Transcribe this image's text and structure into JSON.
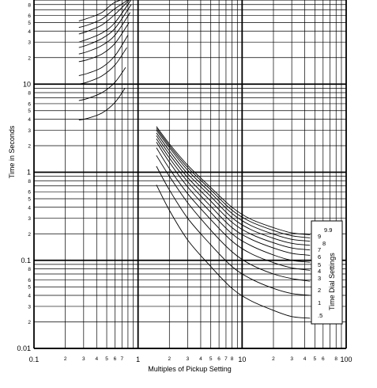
{
  "chart_data": {
    "type": "line",
    "title": "",
    "xlabel": "Multiples of Pickup Setting",
    "ylabel": "Time in Seconds",
    "x_scale": "log",
    "y_scale": "log",
    "xlim": [
      0.1,
      100
    ],
    "ylim": [
      0.01,
      100
    ],
    "grid": true,
    "x_major_ticks": [
      {
        "value": 0.1,
        "label": "0.1"
      },
      {
        "value": 1,
        "label": "1"
      },
      {
        "value": 10,
        "label": "10"
      },
      {
        "value": 100,
        "label": "100"
      }
    ],
    "x_minor_ticks": [
      {
        "value": 0.2,
        "label": "2"
      },
      {
        "value": 0.3,
        "label": "3"
      },
      {
        "value": 0.4,
        "label": "4"
      },
      {
        "value": 0.5,
        "label": "5"
      },
      {
        "value": 0.6,
        "label": "6"
      },
      {
        "value": 0.7,
        "label": "7"
      },
      {
        "value": 2,
        "label": "2"
      },
      {
        "value": 3,
        "label": "3"
      },
      {
        "value": 4,
        "label": "4"
      },
      {
        "value": 5,
        "label": "5"
      },
      {
        "value": 6,
        "label": "6"
      },
      {
        "value": 7,
        "label": "7"
      },
      {
        "value": 8,
        "label": "8"
      },
      {
        "value": 20,
        "label": "2"
      },
      {
        "value": 30,
        "label": "3"
      },
      {
        "value": 40,
        "label": "4"
      },
      {
        "value": 50,
        "label": "5"
      },
      {
        "value": 60,
        "label": "6"
      },
      {
        "value": 80,
        "label": "8"
      }
    ],
    "y_major_ticks": [
      {
        "value": 0.01,
        "label": "0.01"
      },
      {
        "value": 0.1,
        "label": "0.1"
      },
      {
        "value": 1,
        "label": "1"
      },
      {
        "value": 10,
        "label": "10"
      }
    ],
    "y_minor_ticks": [
      {
        "value": 0.02,
        "label": "2"
      },
      {
        "value": 0.03,
        "label": "3"
      },
      {
        "value": 0.04,
        "label": "4"
      },
      {
        "value": 0.05,
        "label": "5"
      },
      {
        "value": 0.06,
        "label": "6"
      },
      {
        "value": 0.08,
        "label": "8"
      },
      {
        "value": 0.2,
        "label": "2"
      },
      {
        "value": 0.3,
        "label": "3"
      },
      {
        "value": 0.4,
        "label": "4"
      },
      {
        "value": 0.5,
        "label": "5"
      },
      {
        "value": 0.6,
        "label": "6"
      },
      {
        "value": 0.8,
        "label": "8"
      },
      {
        "value": 2,
        "label": "2"
      },
      {
        "value": 3,
        "label": "3"
      },
      {
        "value": 4,
        "label": "4"
      },
      {
        "value": 5,
        "label": "5"
      },
      {
        "value": 6,
        "label": "6"
      },
      {
        "value": 8,
        "label": "8"
      },
      {
        "value": 20,
        "label": "2"
      },
      {
        "value": 30,
        "label": "3"
      },
      {
        "value": 40,
        "label": "4"
      },
      {
        "value": 50,
        "label": "5"
      },
      {
        "value": 60,
        "label": "6"
      },
      {
        "value": 80,
        "label": "8"
      }
    ],
    "legend_title": "Time Dial Settings",
    "legend_placement": "right",
    "dial_labels": [
      "9.9",
      "9",
      "8",
      "7",
      "6",
      "5",
      "4",
      "3",
      "2",
      "1",
      ".5"
    ],
    "series": [
      {
        "dial": 0.5,
        "low": {
          "x": [
            0.27,
            0.33,
            0.45,
            0.6,
            0.75
          ],
          "y": [
            3.9,
            4.1,
            4.7,
            6.2,
            9.0
          ]
        },
        "high": {
          "x": [
            1.5,
            2,
            3,
            5,
            8,
            12,
            20,
            30,
            45
          ],
          "y": [
            0.72,
            0.37,
            0.17,
            0.085,
            0.048,
            0.035,
            0.027,
            0.023,
            0.022
          ]
        }
      },
      {
        "dial": 1,
        "low": {
          "x": [
            0.27,
            0.33,
            0.45,
            0.6,
            0.76
          ],
          "y": [
            6.5,
            6.9,
            8.0,
            10.5,
            15.5
          ]
        },
        "high": {
          "x": [
            1.5,
            2,
            3,
            5,
            8,
            12,
            20,
            30,
            45
          ],
          "y": [
            1.17,
            0.63,
            0.3,
            0.15,
            0.085,
            0.062,
            0.048,
            0.042,
            0.04
          ]
        }
      },
      {
        "dial": 2,
        "low": {
          "x": [
            0.27,
            0.33,
            0.45,
            0.6,
            0.78
          ],
          "y": [
            10.0,
            10.6,
            12.4,
            16.5,
            26
          ]
        },
        "high": {
          "x": [
            1.5,
            2,
            3,
            5,
            8,
            12,
            20,
            30,
            45
          ],
          "y": [
            1.55,
            0.9,
            0.45,
            0.22,
            0.125,
            0.09,
            0.07,
            0.062,
            0.058
          ]
        }
      },
      {
        "dial": 3,
        "low": {
          "x": [
            0.27,
            0.33,
            0.45,
            0.6,
            0.8
          ],
          "y": [
            12.5,
            13.3,
            15.5,
            21,
            36
          ]
        },
        "high": {
          "x": [
            1.5,
            2,
            3,
            5,
            8,
            12,
            20,
            30,
            45
          ],
          "y": [
            1.9,
            1.1,
            0.57,
            0.29,
            0.165,
            0.12,
            0.094,
            0.082,
            0.077
          ]
        }
      },
      {
        "dial": 4,
        "low": {
          "x": [
            0.27,
            0.33,
            0.45,
            0.6,
            0.82
          ],
          "y": [
            18,
            19,
            22,
            29,
            50
          ]
        },
        "high": {
          "x": [
            1.5,
            2,
            3,
            5,
            8,
            12,
            20,
            30,
            45
          ],
          "y": [
            2.2,
            1.3,
            0.68,
            0.35,
            0.2,
            0.148,
            0.115,
            0.1,
            0.095
          ]
        }
      },
      {
        "dial": 5,
        "low": {
          "x": [
            0.27,
            0.33,
            0.45,
            0.6,
            0.84
          ],
          "y": [
            22,
            23.5,
            27.5,
            36,
            65
          ]
        },
        "high": {
          "x": [
            1.5,
            2,
            3,
            5,
            8,
            12,
            20,
            30,
            45
          ],
          "y": [
            2.4,
            1.45,
            0.78,
            0.41,
            0.235,
            0.175,
            0.138,
            0.12,
            0.114
          ]
        }
      },
      {
        "dial": 6,
        "low": {
          "x": [
            0.27,
            0.33,
            0.45,
            0.6,
            0.86
          ],
          "y": [
            26,
            28,
            33,
            43,
            80
          ]
        },
        "high": {
          "x": [
            1.5,
            2,
            3,
            5,
            8,
            12,
            20,
            30,
            45
          ],
          "y": [
            2.6,
            1.6,
            0.87,
            0.47,
            0.27,
            0.2,
            0.158,
            0.138,
            0.131
          ]
        }
      },
      {
        "dial": 7,
        "low": {
          "x": [
            0.27,
            0.33,
            0.45,
            0.6,
            0.88
          ],
          "y": [
            30,
            32.5,
            38,
            50,
            95
          ]
        },
        "high": {
          "x": [
            1.5,
            2,
            3,
            5,
            8,
            12,
            20,
            30,
            45
          ],
          "y": [
            2.8,
            1.75,
            0.96,
            0.53,
            0.305,
            0.225,
            0.178,
            0.156,
            0.148
          ]
        }
      },
      {
        "dial": 8,
        "low": {
          "x": [
            0.27,
            0.33,
            0.45,
            0.6,
            0.9
          ],
          "y": [
            37,
            40,
            47,
            62,
            100
          ]
        },
        "high": {
          "x": [
            1.5,
            2,
            3,
            5,
            8,
            12,
            20,
            30,
            45
          ],
          "y": [
            3.0,
            1.9,
            1.05,
            0.58,
            0.34,
            0.25,
            0.198,
            0.173,
            0.165
          ]
        }
      },
      {
        "dial": 9,
        "low": {
          "x": [
            0.27,
            0.33,
            0.45,
            0.6,
            0.92
          ],
          "y": [
            44,
            47,
            55,
            72,
            100
          ]
        },
        "high": {
          "x": [
            1.5,
            2,
            3,
            5,
            8,
            12,
            20,
            30,
            45
          ],
          "y": [
            3.15,
            2.0,
            1.13,
            0.63,
            0.37,
            0.275,
            0.218,
            0.19,
            0.18
          ]
        }
      },
      {
        "dial": 9.9,
        "low": {
          "x": [
            0.27,
            0.33,
            0.45,
            0.6,
            0.94
          ],
          "y": [
            52,
            56,
            65,
            85,
            100
          ]
        },
        "high": {
          "x": [
            1.5,
            2,
            3,
            5,
            8,
            12,
            20,
            30,
            45
          ],
          "y": [
            3.3,
            2.1,
            1.2,
            0.67,
            0.4,
            0.295,
            0.235,
            0.205,
            0.195
          ]
        }
      }
    ]
  }
}
